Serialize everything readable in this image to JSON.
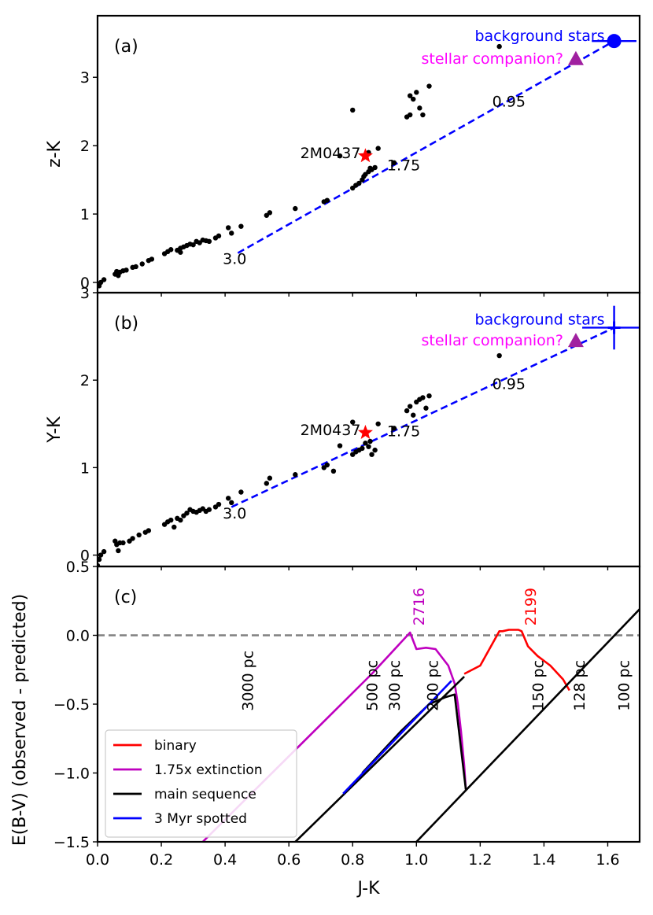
{
  "chart_data": [
    {
      "type": "scatter",
      "panel": "(a)",
      "panel_label": "(a)",
      "xlabel": "",
      "ylabel": "z-K",
      "xlim": [
        0,
        1.7
      ],
      "ylim": [
        -0.15,
        3.9
      ],
      "yticks": [
        0,
        1,
        2,
        3
      ],
      "points": [
        [
          0.0,
          -0.18
        ],
        [
          0.005,
          -0.05
        ],
        [
          0.01,
          0.0
        ],
        [
          0.02,
          0.04
        ],
        [
          0.055,
          0.12
        ],
        [
          0.06,
          0.16
        ],
        [
          0.065,
          0.1
        ],
        [
          0.07,
          0.15
        ],
        [
          0.08,
          0.17
        ],
        [
          0.09,
          0.18
        ],
        [
          0.11,
          0.22
        ],
        [
          0.12,
          0.23
        ],
        [
          0.14,
          0.27
        ],
        [
          0.16,
          0.32
        ],
        [
          0.17,
          0.34
        ],
        [
          0.21,
          0.42
        ],
        [
          0.22,
          0.45
        ],
        [
          0.23,
          0.48
        ],
        [
          0.25,
          0.47
        ],
        [
          0.26,
          0.44
        ],
        [
          0.26,
          0.5
        ],
        [
          0.27,
          0.52
        ],
        [
          0.28,
          0.54
        ],
        [
          0.29,
          0.56
        ],
        [
          0.3,
          0.55
        ],
        [
          0.31,
          0.6
        ],
        [
          0.32,
          0.58
        ],
        [
          0.33,
          0.62
        ],
        [
          0.34,
          0.61
        ],
        [
          0.35,
          0.6
        ],
        [
          0.37,
          0.65
        ],
        [
          0.38,
          0.68
        ],
        [
          0.41,
          0.8
        ],
        [
          0.42,
          0.72
        ],
        [
          0.45,
          0.82
        ],
        [
          0.53,
          0.98
        ],
        [
          0.54,
          1.02
        ],
        [
          0.62,
          1.08
        ],
        [
          0.71,
          1.18
        ],
        [
          0.72,
          1.2
        ],
        [
          0.8,
          1.38
        ],
        [
          0.81,
          1.42
        ],
        [
          0.82,
          1.45
        ],
        [
          0.83,
          1.5
        ],
        [
          0.835,
          1.55
        ],
        [
          0.84,
          1.58
        ],
        [
          0.85,
          1.62
        ],
        [
          0.855,
          1.67
        ],
        [
          0.86,
          1.65
        ],
        [
          0.87,
          1.68
        ],
        [
          0.85,
          1.9
        ],
        [
          0.88,
          1.96
        ],
        [
          0.76,
          1.85
        ],
        [
          0.8,
          2.52
        ],
        [
          0.93,
          1.75
        ],
        [
          0.97,
          2.42
        ],
        [
          0.98,
          2.45
        ],
        [
          0.98,
          2.73
        ],
        [
          0.99,
          2.68
        ],
        [
          1.0,
          2.78
        ],
        [
          1.01,
          2.55
        ],
        [
          1.02,
          2.45
        ],
        [
          1.04,
          2.87
        ],
        [
          1.26,
          3.45
        ]
      ],
      "target": {
        "name": "2M0437",
        "x": 0.84,
        "y": 1.85
      },
      "companion": {
        "name": "stellar companion?",
        "x": 1.5,
        "y": 3.27
      },
      "background": {
        "name": "background stars",
        "x": 1.62,
        "y": 3.53,
        "xerr": 0.07,
        "yerr": 0.0
      },
      "reddening_line": {
        "x": [
          0.44,
          1.62
        ],
        "y": [
          0.43,
          3.53
        ]
      },
      "line_labels": [
        {
          "text": "3.0",
          "x": 0.43,
          "y": 0.35
        },
        {
          "text": "1.75",
          "x": 0.96,
          "y": 1.72
        },
        {
          "text": "0.95",
          "x": 1.29,
          "y": 2.65
        }
      ]
    },
    {
      "type": "scatter",
      "panel": "(b)",
      "panel_label": "(b)",
      "xlabel": "",
      "ylabel": "Y-K",
      "xlim": [
        0,
        1.7
      ],
      "ylim": [
        -0.13,
        3.0
      ],
      "yticks": [
        0,
        1,
        2,
        3
      ],
      "points": [
        [
          0.0,
          -0.12
        ],
        [
          0.005,
          -0.05
        ],
        [
          0.01,
          0.0
        ],
        [
          0.02,
          0.04
        ],
        [
          0.055,
          0.16
        ],
        [
          0.06,
          0.12
        ],
        [
          0.065,
          0.05
        ],
        [
          0.07,
          0.14
        ],
        [
          0.08,
          0.14
        ],
        [
          0.1,
          0.16
        ],
        [
          0.11,
          0.19
        ],
        [
          0.13,
          0.23
        ],
        [
          0.15,
          0.26
        ],
        [
          0.16,
          0.28
        ],
        [
          0.21,
          0.35
        ],
        [
          0.22,
          0.38
        ],
        [
          0.23,
          0.4
        ],
        [
          0.25,
          0.42
        ],
        [
          0.24,
          0.32
        ],
        [
          0.26,
          0.4
        ],
        [
          0.27,
          0.45
        ],
        [
          0.28,
          0.48
        ],
        [
          0.29,
          0.52
        ],
        [
          0.3,
          0.5
        ],
        [
          0.31,
          0.49
        ],
        [
          0.32,
          0.51
        ],
        [
          0.33,
          0.53
        ],
        [
          0.34,
          0.5
        ],
        [
          0.35,
          0.52
        ],
        [
          0.37,
          0.55
        ],
        [
          0.38,
          0.58
        ],
        [
          0.41,
          0.65
        ],
        [
          0.42,
          0.6
        ],
        [
          0.45,
          0.72
        ],
        [
          0.53,
          0.82
        ],
        [
          0.54,
          0.88
        ],
        [
          0.62,
          0.92
        ],
        [
          0.71,
          1.0
        ],
        [
          0.72,
          1.03
        ],
        [
          0.74,
          0.96
        ],
        [
          0.76,
          1.25
        ],
        [
          0.8,
          1.15
        ],
        [
          0.81,
          1.18
        ],
        [
          0.82,
          1.2
        ],
        [
          0.83,
          1.22
        ],
        [
          0.84,
          1.28
        ],
        [
          0.85,
          1.24
        ],
        [
          0.855,
          1.3
        ],
        [
          0.86,
          1.15
        ],
        [
          0.87,
          1.2
        ],
        [
          0.8,
          1.52
        ],
        [
          0.88,
          1.5
        ],
        [
          0.93,
          1.45
        ],
        [
          0.97,
          1.65
        ],
        [
          0.98,
          1.7
        ],
        [
          0.99,
          1.6
        ],
        [
          1.0,
          1.75
        ],
        [
          1.01,
          1.78
        ],
        [
          1.02,
          1.8
        ],
        [
          1.03,
          1.68
        ],
        [
          1.04,
          1.82
        ],
        [
          1.26,
          2.28
        ]
      ],
      "target": {
        "name": "2M0437",
        "x": 0.84,
        "y": 1.4
      },
      "companion": {
        "name": "stellar companion?",
        "x": 1.5,
        "y": 2.45
      },
      "background": {
        "name": "background stars",
        "x": 1.62,
        "y": 2.6,
        "xerr": 0.1,
        "yerr": 0.25
      },
      "reddening_line": {
        "x": [
          0.42,
          1.62
        ],
        "y": [
          0.55,
          2.6
        ]
      },
      "line_labels": [
        {
          "text": "3.0",
          "x": 0.43,
          "y": 0.48
        },
        {
          "text": "1.75",
          "x": 0.96,
          "y": 1.42
        },
        {
          "text": "0.95",
          "x": 1.29,
          "y": 1.96
        }
      ]
    },
    {
      "type": "line",
      "panel": "(c)",
      "panel_label": "(c)",
      "xlabel": "J-K",
      "ylabel": "E(B-V) (observed - predicted)",
      "xlim": [
        0,
        1.7
      ],
      "ylim": [
        -1.5,
        0.5
      ],
      "xticks": [
        0.0,
        0.2,
        0.4,
        0.6,
        0.8,
        1.0,
        1.2,
        1.4,
        1.6
      ],
      "xtick_labels": [
        "0.0",
        "0.2",
        "0.4",
        "0.6",
        "0.8",
        "1.0",
        "1.2",
        "1.4",
        "1.6"
      ],
      "yticks": [
        -1.5,
        -1.0,
        -0.5,
        0.0,
        0.5
      ],
      "ytick_labels": [
        "−1.5",
        "−1.0",
        "−0.5",
        "0.0",
        "0.5"
      ],
      "zero_line": 0.0,
      "series": [
        {
          "name": "binary",
          "color": "#ff0000",
          "x": [
            1.15,
            1.2,
            1.26,
            1.27,
            1.29,
            1.32,
            1.33,
            1.35,
            1.38,
            1.42,
            1.46,
            1.48
          ],
          "y": [
            -0.28,
            -0.22,
            0.03,
            0.03,
            0.04,
            0.04,
            0.03,
            -0.08,
            -0.15,
            -0.22,
            -0.32,
            -0.4
          ]
        },
        {
          "name": "1.75x extinction",
          "color": "#bf00bf",
          "x": [
            0.33,
            0.86,
            0.98,
            1.0,
            1.03,
            1.06,
            1.1,
            1.12,
            1.13,
            1.14,
            1.15,
            1.155
          ],
          "y": [
            -1.5,
            -0.28,
            0.02,
            -0.1,
            -0.09,
            -0.1,
            -0.22,
            -0.35,
            -0.5,
            -0.7,
            -0.95,
            -1.12
          ]
        },
        {
          "name": "main sequence",
          "color": "#000000",
          "x": [
            0.83,
            0.95,
            1.04,
            1.09,
            1.12,
            1.155
          ],
          "y": [
            -1.0,
            -0.7,
            -0.5,
            -0.45,
            -0.43,
            -1.12
          ]
        },
        {
          "name": "main sequence (100 pc)",
          "color": "#000000",
          "x": [
            0.62,
            1.15
          ],
          "y": [
            -1.5,
            -0.3
          ]
        },
        {
          "name": "main sequence (128 pc)",
          "color": "#000000",
          "x": [
            1.0,
            1.7
          ],
          "y": [
            -1.5,
            0.19
          ]
        },
        {
          "name": "3 Myr spotted",
          "color": "#0000ff",
          "x": [
            0.77,
            1.11
          ],
          "y": [
            -1.15,
            -0.33
          ]
        }
      ],
      "legend": [
        "binary",
        "1.75x extinction",
        "main sequence",
        "3 Myr spotted"
      ],
      "distance_labels": [
        {
          "text": "3000 pc",
          "x": 0.47
        },
        {
          "text": "500 pc",
          "x": 0.86
        },
        {
          "text": "300 pc",
          "x": 0.93
        },
        {
          "text": "200 pc",
          "x": 1.05
        },
        {
          "text": "150 pc",
          "x": 1.38
        },
        {
          "text": "128 pc",
          "x": 1.51
        },
        {
          "text": "100 pc",
          "x": 1.65
        }
      ],
      "peak_labels": [
        {
          "text": "2716",
          "x": 0.99,
          "color": "#bf00bf"
        },
        {
          "text": "2199",
          "x": 1.34,
          "color": "#ff0000"
        }
      ]
    }
  ]
}
